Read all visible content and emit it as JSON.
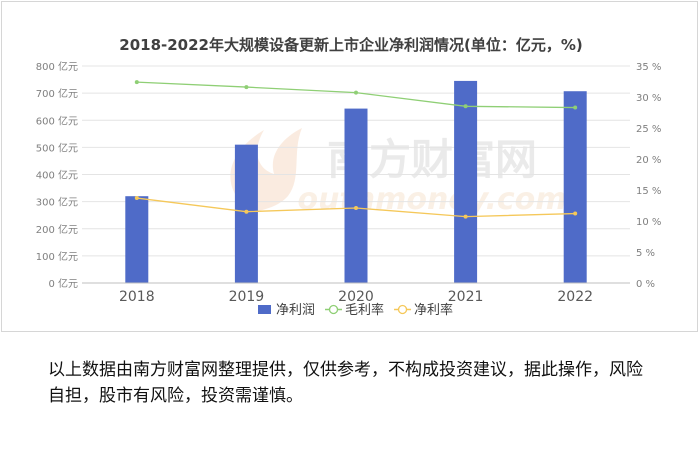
{
  "chart_data": {
    "type": "bar",
    "title": "2018-2022年大规模设备更新上市企业净利润情况(单位：亿元，%)",
    "categories": [
      "2018",
      "2019",
      "2020",
      "2021",
      "2022"
    ],
    "series": [
      {
        "name": "净利润",
        "type": "bar",
        "axis": "left",
        "color": "#4f6bc8",
        "values": [
          320,
          510,
          643,
          745,
          707
        ]
      },
      {
        "name": "毛利率",
        "type": "line",
        "axis": "right",
        "color": "#8fcf75",
        "values": [
          32.4,
          31.6,
          30.7,
          28.5,
          28.3
        ]
      },
      {
        "name": "净利率",
        "type": "line",
        "axis": "right",
        "color": "#f5c85a",
        "values": [
          13.7,
          11.5,
          12.1,
          10.7,
          11.2
        ]
      }
    ],
    "y_left": {
      "min": 0,
      "max": 800,
      "step": 100,
      "unit": " 亿元"
    },
    "y_right": {
      "min": 0,
      "max": 35,
      "step": 5,
      "unit": " %"
    },
    "grid": true,
    "legend": "bottom"
  },
  "watermark": {
    "cn": "南方财富网",
    "en": "outhmoney.com"
  },
  "disclaimer": "以上数据由南方财富网整理提供，仅供参考，不构成投资建议，据此操作，风险自担，股市有风险，投资需谨慎。"
}
